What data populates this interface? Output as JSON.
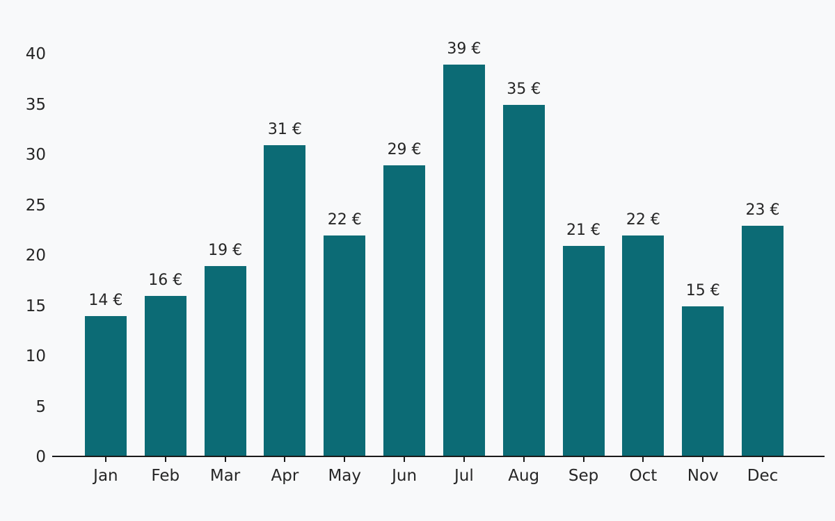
{
  "chart_data": {
    "type": "bar",
    "categories": [
      "Jan",
      "Feb",
      "Mar",
      "Apr",
      "May",
      "Jun",
      "Jul",
      "Aug",
      "Sep",
      "Oct",
      "Nov",
      "Dec"
    ],
    "values": [
      14,
      16,
      19,
      31,
      22,
      29,
      39,
      35,
      21,
      22,
      15,
      23
    ],
    "bar_labels": [
      "14 €",
      "16 €",
      "19 €",
      "31 €",
      "22 €",
      "29 €",
      "39 €",
      "35 €",
      "21 €",
      "22 €",
      "15 €",
      "23 €"
    ],
    "title": "",
    "xlabel": "",
    "ylabel": "",
    "ylim": [
      0,
      40
    ],
    "yticks": [
      0,
      5,
      10,
      15,
      20,
      25,
      30,
      35,
      40
    ],
    "value_suffix": " €",
    "bar_color": "#0c6b75",
    "background_color": "#f8f9fa",
    "axis_color": "#1a1a1a",
    "text_color": "#262626",
    "grid": false,
    "legend": null
  }
}
